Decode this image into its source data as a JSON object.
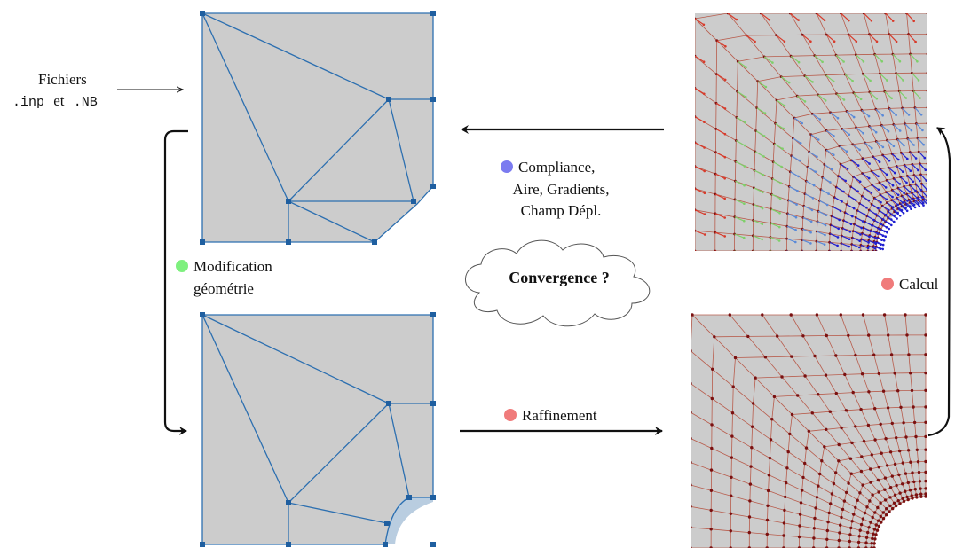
{
  "files_label": {
    "line1": "Fichiers",
    "ext1": ".inp",
    "joiner": "et",
    "ext2": ".NB"
  },
  "step_compliance": {
    "line1": "Compliance,",
    "line2": "Aire, Gradients,",
    "line3": "Champ Dépl.",
    "marker_color": "#7b7bf0"
  },
  "step_modification": {
    "line1": "Modification",
    "line2": "géométrie",
    "marker_color": "#7ef07e"
  },
  "step_refinement": {
    "label": "Raffinement",
    "marker_color": "#f07b7b"
  },
  "step_calcul": {
    "label": "Calcul",
    "marker_color": "#f07b7b"
  },
  "convergence": {
    "label": "Convergence ?"
  },
  "colors": {
    "domain_fill": "#cccccc",
    "geometry_lines": "#2c6fb0",
    "mesh_lines": "#b85c4c",
    "mesh_nodes": "#7a1010",
    "arrows": "#111111"
  }
}
